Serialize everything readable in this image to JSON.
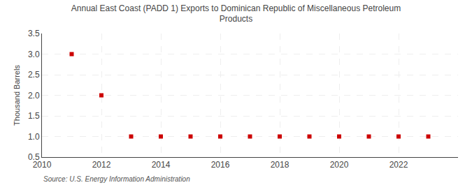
{
  "chart_data": {
    "type": "scatter",
    "title": "Annual East Coast (PADD 1) Exports to Dominican Republic of Miscellaneous Petroleum\nProducts",
    "ylabel": "Thousand Barrels",
    "annotations": [
      "Source: U.S. Energy Information Administration"
    ],
    "x": [
      2011,
      2012,
      2013,
      2014,
      2015,
      2016,
      2017,
      2018,
      2019,
      2020,
      2021,
      2022,
      2023
    ],
    "values": [
      3.0,
      2.0,
      1.0,
      1.0,
      1.0,
      1.0,
      1.0,
      1.0,
      1.0,
      1.0,
      1.0,
      1.0,
      1.0
    ],
    "color": "#cc0000",
    "marker": "square",
    "xlim": [
      2010,
      2024
    ],
    "ylim": [
      0.5,
      3.5
    ],
    "xticks": [
      2010,
      2012,
      2014,
      2016,
      2018,
      2020,
      2022
    ],
    "yticks": [
      0.5,
      {
        "value": 1.0,
        "label": "1.0"
      },
      1.5,
      {
        "value": 2.0,
        "label": "2.0"
      },
      2.5,
      {
        "value": 3.0,
        "label": "3.0"
      },
      3.5
    ],
    "grid": true
  }
}
